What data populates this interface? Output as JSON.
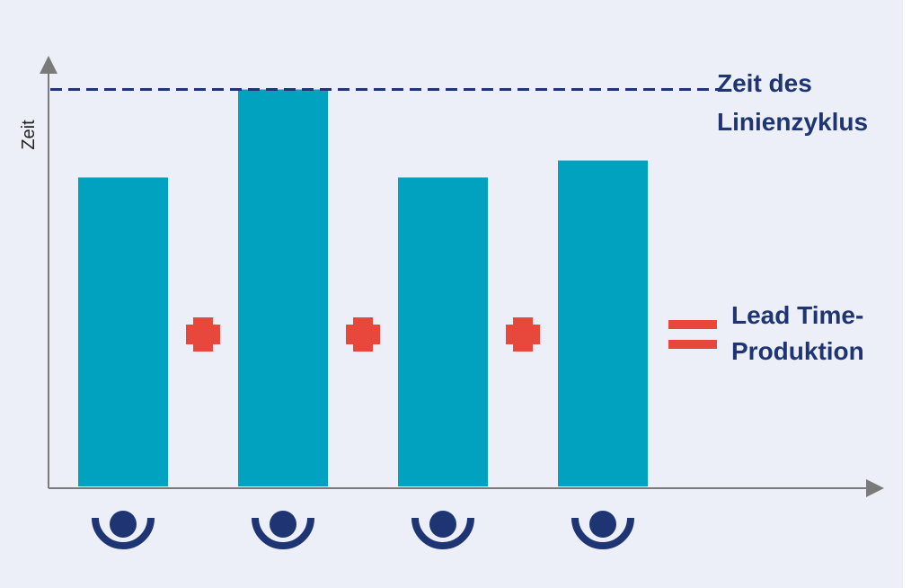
{
  "chart_data": {
    "type": "bar",
    "ylabel": "Zeit",
    "xlabel": "",
    "categories": [
      "",
      "",
      "",
      ""
    ],
    "values": [
      200,
      257,
      200,
      211
    ],
    "ylim": [
      0,
      280
    ],
    "reference_line": {
      "value": 257,
      "label_line1": "Zeit des",
      "label_line2": "Linienzyklus",
      "style": "dashed"
    },
    "operators": [
      "+",
      "+",
      "+",
      "="
    ],
    "result_label_line1": "Lead Time-",
    "result_label_line2": "Produktion",
    "grid": false,
    "legend": "none"
  },
  "colors": {
    "background": "#eceff7",
    "bar": "#00a2c0",
    "axis": "#7a7a7a",
    "dark_blue": "#1e3473",
    "operator_red": "#e8483c"
  },
  "icons": [
    "operator-icon",
    "operator-icon",
    "operator-icon",
    "operator-icon"
  ]
}
